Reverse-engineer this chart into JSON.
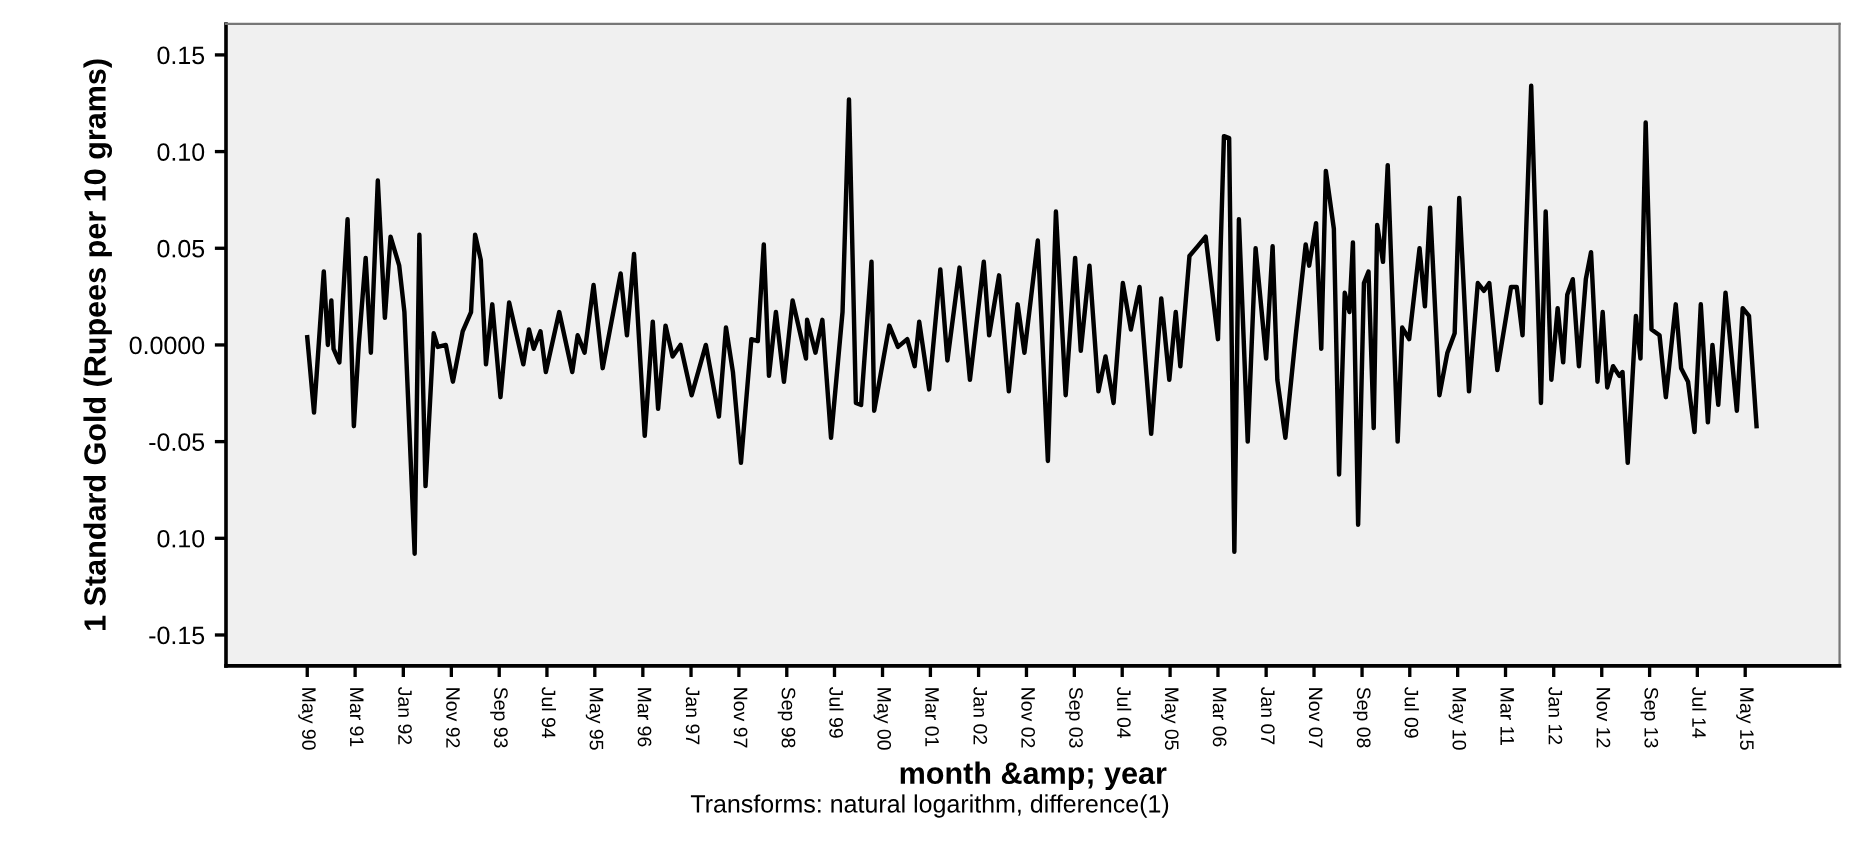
{
  "chart_data": {
    "type": "line",
    "xlabel": "month &amp; year",
    "ylabel": "1 Standard Gold (Rupees per 10 grams)",
    "annotations": [
      "Transforms: natural logarithm, difference(1)"
    ],
    "x": [
      "1990-05-01",
      "1990-06-13",
      "1990-08-14",
      "1990-09-09",
      "1990-10-01",
      "1990-10-15",
      "1990-11-21",
      "1991-01-12",
      "1991-02-21",
      "1991-03-24",
      "1991-05-07",
      "1991-06-09",
      "1991-07-23",
      "1991-09-06",
      "1991-10-12",
      "1991-12-06",
      "1992-01-08",
      "1992-03-13",
      "1992-04-12",
      "1992-05-21",
      "1992-07-12",
      "1992-08-07",
      "1992-09-27",
      "1992-11-11",
      "1993-01-12",
      "1993-03-06",
      "1993-04-01",
      "1993-05-07",
      "1993-06-09",
      "1993-07-19",
      "1993-09-09",
      "1993-11-03",
      "1994-02-01",
      "1994-03-09",
      "1994-04-08",
      "1994-05-21",
      "1994-06-24",
      "1994-09-17",
      "1994-12-09",
      "1995-01-12",
      "1995-02-25",
      "1995-04-23",
      "1995-06-20",
      "1995-10-12",
      "1995-11-21",
      "1996-01-05",
      "1996-03-13",
      "1996-05-03",
      "1996-06-06",
      "1996-07-23",
      "1996-09-06",
      "1996-10-26",
      "1997-01-05",
      "1997-04-05",
      "1997-06-27",
      "1997-08-11",
      "1997-09-24",
      "1997-11-14",
      "1998-01-19",
      "1998-03-01",
      "1998-04-08",
      "1998-05-11",
      "1998-06-24",
      "1998-08-14",
      "1998-10-08",
      "1999-01-01",
      "1999-01-08",
      "1999-03-02",
      "1999-04-15",
      "1999-06-09",
      "1999-08-21",
      "1999-10-01",
      "1999-11-14",
      "1999-12-17",
      "2000-02-21",
      "2000-03-09",
      "2000-06-13",
      "2000-08-07",
      "2000-10-05",
      "2000-11-21",
      "2000-12-20",
      "2001-02-21",
      "2001-05-03",
      "2001-06-17",
      "2001-09-02",
      "2001-11-07",
      "2002-02-03",
      "2002-03-09",
      "2002-05-11",
      "2002-07-12",
      "2002-09-06",
      "2002-10-19",
      "2003-01-12",
      "2003-03-17",
      "2003-05-07",
      "2003-07-08",
      "2003-09-06",
      "2003-10-12",
      "2003-12-06",
      "2004-02-01",
      "2004-03-17",
      "2004-05-07",
      "2004-07-05",
      "2004-08-25",
      "2004-10-19",
      "2005-01-01",
      "2005-03-06",
      "2005-04-26",
      "2005-06-06",
      "2005-07-05",
      "2005-09-01",
      "2005-10-23",
      "2005-12-13",
      "2006-03-01",
      "2006-04-08",
      "2006-05-11",
      "2006-06-13",
      "2006-07-12",
      "2006-09-06",
      "2006-10-26",
      "2007-01-01",
      "2007-02-11",
      "2007-03-13",
      "2007-05-03",
      "2007-07-08",
      "2007-09-09",
      "2007-10-01",
      "2007-11-14",
      "2007-12-17",
      "2008-01-15",
      "2008-03-06",
      "2008-04-08",
      "2008-05-14",
      "2008-06-13",
      "2008-07-05",
      "2008-08-07",
      "2008-09-13",
      "2008-10-12",
      "2008-11-14",
      "2008-12-06",
      "2009-01-12",
      "2009-02-11",
      "2009-04-15",
      "2009-05-14",
      "2009-06-27",
      "2009-09-01",
      "2009-10-05",
      "2009-11-07",
      "2010-01-05",
      "2010-02-25",
      "2010-04-12",
      "2010-05-11",
      "2010-07-12",
      "2010-09-06",
      "2010-10-15",
      "2010-11-18",
      "2011-01-08",
      "2011-04-05",
      "2011-05-11",
      "2011-06-17",
      "2011-08-11",
      "2011-10-12",
      "2011-11-11",
      "2011-12-17",
      "2012-01-26",
      "2012-03-01",
      "2012-03-27",
      "2012-05-01",
      "2012-06-09",
      "2012-07-23",
      "2012-08-25",
      "2012-10-05",
      "2012-11-07",
      "2012-12-06",
      "2013-01-12",
      "2013-02-21",
      "2013-03-13",
      "2013-04-15",
      "2013-06-06",
      "2013-07-05",
      "2013-08-07",
      "2013-09-13",
      "2013-11-03",
      "2013-12-13",
      "2014-02-14",
      "2014-03-20",
      "2014-05-03",
      "2014-06-13",
      "2014-07-23",
      "2014-09-06",
      "2014-10-05",
      "2014-11-11",
      "2014-12-27",
      "2015-03-09",
      "2015-04-15",
      "2015-05-25",
      "2015-07-12"
    ],
    "series": [
      {
        "color": "#000000",
        "values": [
          0.004,
          -0.035,
          0.038,
          0.0,
          0.023,
          -0.002,
          -0.009,
          0.065,
          -0.042,
          0.0,
          0.045,
          -0.004,
          0.085,
          0.014,
          0.056,
          0.041,
          0.017,
          -0.108,
          0.057,
          -0.073,
          0.006,
          -0.001,
          0.0,
          -0.019,
          0.007,
          0.017,
          0.057,
          0.044,
          -0.01,
          0.021,
          -0.027,
          0.022,
          -0.01,
          0.008,
          -0.002,
          0.007,
          -0.014,
          0.017,
          -0.014,
          0.005,
          -0.004,
          0.031,
          -0.012,
          0.037,
          0.005,
          0.047,
          -0.047,
          0.012,
          -0.033,
          0.01,
          -0.006,
          0.0,
          -0.026,
          0.0,
          -0.037,
          0.009,
          -0.014,
          -0.061,
          0.003,
          0.002,
          0.052,
          -0.016,
          0.017,
          -0.019,
          0.023,
          -0.007,
          0.013,
          -0.004,
          0.013,
          -0.048,
          0.017,
          0.127,
          -0.03,
          -0.031,
          0.043,
          -0.034,
          0.01,
          -0.001,
          0.003,
          -0.011,
          0.012,
          -0.023,
          0.039,
          -0.008,
          0.04,
          -0.018,
          0.043,
          0.005,
          0.036,
          -0.024,
          0.021,
          -0.004,
          0.054,
          -0.06,
          0.069,
          -0.026,
          0.045,
          -0.003,
          0.041,
          -0.024,
          -0.006,
          -0.03,
          0.032,
          0.008,
          0.03,
          -0.046,
          0.024,
          -0.018,
          0.017,
          -0.011,
          0.046,
          0.051,
          0.056,
          0.003,
          0.108,
          0.107,
          -0.107,
          0.065,
          -0.05,
          0.05,
          -0.007,
          0.051,
          -0.018,
          -0.048,
          0.005,
          0.052,
          0.041,
          0.063,
          -0.002,
          0.09,
          0.06,
          -0.067,
          0.027,
          0.017,
          0.053,
          -0.093,
          0.032,
          0.038,
          -0.043,
          0.062,
          0.043,
          0.093,
          -0.05,
          0.009,
          0.003,
          0.05,
          0.02,
          0.071,
          -0.026,
          -0.004,
          0.006,
          0.076,
          -0.024,
          0.032,
          0.028,
          0.032,
          -0.013,
          0.03,
          0.03,
          0.005,
          0.134,
          -0.03,
          0.069,
          -0.018,
          0.019,
          -0.009,
          0.026,
          0.034,
          -0.011,
          0.034,
          0.048,
          -0.019,
          0.017,
          -0.022,
          -0.011,
          -0.016,
          -0.014,
          -0.061,
          0.015,
          -0.007,
          0.115,
          0.008,
          0.005,
          -0.027,
          0.021,
          -0.012,
          -0.019,
          -0.045,
          0.021,
          -0.04,
          0.0,
          -0.031,
          0.027,
          -0.034,
          0.019,
          0.015,
          -0.042
        ]
      }
    ],
    "xlim": [
      "1988-12-01",
      "2016-12-20"
    ],
    "xticks": [
      {
        "value": "1990-05",
        "label": "May 90"
      },
      {
        "value": "1991-03",
        "label": "Mar 91"
      },
      {
        "value": "1992-01",
        "label": "Jan 92"
      },
      {
        "value": "1992-11",
        "label": "Nov 92"
      },
      {
        "value": "1993-09",
        "label": "Sep 93"
      },
      {
        "value": "1994-07",
        "label": "Jul 94"
      },
      {
        "value": "1995-05",
        "label": "May 95"
      },
      {
        "value": "1996-03",
        "label": "Mar 96"
      },
      {
        "value": "1997-01",
        "label": "Jan 97"
      },
      {
        "value": "1997-11",
        "label": "Nov 97"
      },
      {
        "value": "1998-09",
        "label": "Sep 98"
      },
      {
        "value": "1999-07",
        "label": "Jul 99"
      },
      {
        "value": "2000-05",
        "label": "May 00"
      },
      {
        "value": "2001-03",
        "label": "Mar 01"
      },
      {
        "value": "2002-01",
        "label": "Jan 02"
      },
      {
        "value": "2002-11",
        "label": "Nov 02"
      },
      {
        "value": "2003-09",
        "label": "Sep 03"
      },
      {
        "value": "2004-07",
        "label": "Jul 04"
      },
      {
        "value": "2005-05",
        "label": "May 05"
      },
      {
        "value": "2006-03",
        "label": "Mar 06"
      },
      {
        "value": "2007-01",
        "label": "Jan 07"
      },
      {
        "value": "2007-11",
        "label": "Nov 07"
      },
      {
        "value": "2008-09",
        "label": "Sep 08"
      },
      {
        "value": "2009-07",
        "label": "Jul 09"
      },
      {
        "value": "2010-05",
        "label": "May 10"
      },
      {
        "value": "2011-03",
        "label": "Mar 11"
      },
      {
        "value": "2012-01",
        "label": "Jan 12"
      },
      {
        "value": "2012-11",
        "label": "Nov 12"
      },
      {
        "value": "2013-09",
        "label": "Sep 13"
      },
      {
        "value": "2014-07",
        "label": "Jul 14"
      },
      {
        "value": "2015-05",
        "label": "May 15"
      }
    ],
    "ylim": [
      -0.166,
      0.166
    ],
    "yticks": [
      {
        "value": -0.15,
        "label": "-0.15"
      },
      {
        "value": -0.1,
        "label": "0.10"
      },
      {
        "value": -0.05,
        "label": "-0.05"
      },
      {
        "value": 0,
        "label": "0.0000"
      },
      {
        "value": 0.05,
        "label": "0.05"
      },
      {
        "value": 0.1,
        "label": "0.10"
      },
      {
        "value": 0.15,
        "label": "0.15"
      }
    ],
    "grid": false,
    "legend": false,
    "marker": "none",
    "line_style": "solid"
  }
}
